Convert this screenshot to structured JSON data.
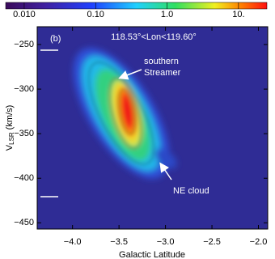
{
  "chart_data": {
    "type": "heatmap",
    "panel_label": "(b)",
    "subtitle": "118.53°<Lon<119.60°",
    "x_label": "Galactic Latitude",
    "y_label": {
      "main": "V",
      "subscript": "LSR",
      "unit": "(km/s)"
    },
    "xlim": [
      -4.38,
      -1.9
    ],
    "xticks": [
      {
        "value": -4.0,
        "label": "−4.0"
      },
      {
        "value": -3.5,
        "label": "−3.5"
      },
      {
        "value": -3.0,
        "label": "−3.0"
      },
      {
        "value": -2.5,
        "label": "−2.5"
      },
      {
        "value": -2.0,
        "label": "−2.0"
      }
    ],
    "ylim": [
      -457,
      -230
    ],
    "yticks": [
      {
        "value": -250,
        "label": "−250"
      },
      {
        "value": -300,
        "label": "−300"
      },
      {
        "value": -350,
        "label": "−350"
      },
      {
        "value": -400,
        "label": "−400"
      },
      {
        "value": -450,
        "label": "−450"
      }
    ],
    "colorbar": {
      "log": true,
      "clim": [
        0.0055,
        25
      ],
      "ticks": [
        {
          "value": 0.01,
          "label": "0.010"
        },
        {
          "value": 0.1,
          "label": "0.10"
        },
        {
          "value": 1,
          "label": "1.0"
        },
        {
          "value": 10,
          "label": "10."
        }
      ]
    },
    "annotations": [
      {
        "lines": [
          "southern",
          "Streamer"
        ]
      },
      {
        "lines": [
          "NE cloud"
        ]
      }
    ]
  }
}
